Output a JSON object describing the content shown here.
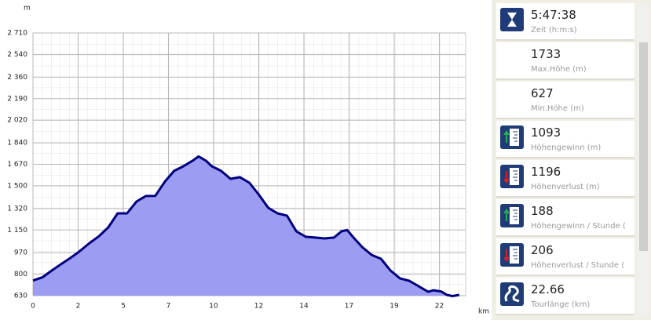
{
  "chart_data": {
    "type": "area",
    "y_label": "m",
    "x_label": "km",
    "x": [
      0,
      0.5,
      1,
      1.5,
      2,
      2.4,
      3,
      3.5,
      4,
      4.5,
      5,
      5.5,
      6,
      6.5,
      7,
      7.5,
      8,
      8.5,
      8.8,
      9.2,
      9.5,
      10,
      10.5,
      11,
      11.5,
      12,
      12.5,
      13,
      13.5,
      14,
      14.5,
      15,
      15.5,
      16,
      16.4,
      16.7,
      17,
      17.5,
      18,
      18.5,
      19,
      19.5,
      20,
      20.5,
      21,
      21.3,
      21.7,
      22,
      22.3,
      22.66
    ],
    "values": [
      750,
      775,
      829,
      880,
      930,
      972,
      1046,
      1100,
      1170,
      1282,
      1282,
      1375,
      1419,
      1420,
      1531,
      1618,
      1655,
      1700,
      1733,
      1698,
      1655,
      1618,
      1555,
      1568,
      1524,
      1431,
      1326,
      1282,
      1264,
      1139,
      1096,
      1090,
      1083,
      1090,
      1140,
      1150,
      1096,
      1015,
      953,
      922,
      829,
      767,
      748,
      705,
      661,
      673,
      663,
      636,
      627,
      636
    ],
    "color": "#9c9cf2",
    "line_color": "#000080",
    "xlim": [
      0,
      23
    ],
    "ylim": [
      630,
      2710
    ],
    "xticks": [
      0,
      {
        "value": 2.4,
        "label": "2"
      },
      {
        "value": 4.8,
        "label": "5"
      },
      {
        "value": 7.2,
        "label": "7"
      },
      {
        "value": 9.6,
        "label": "10"
      },
      12,
      {
        "value": 14.4,
        "label": "14"
      },
      {
        "value": 16.8,
        "label": "17"
      },
      {
        "value": 19.2,
        "label": "19"
      },
      {
        "value": 21.6,
        "label": "22"
      }
    ],
    "yticks": [
      630,
      800,
      970,
      {
        "value": 1150,
        "label": "1 150"
      },
      {
        "value": 1320,
        "label": "1 320"
      },
      {
        "value": 1500,
        "label": "1 500"
      },
      {
        "value": 1670,
        "label": "1 670"
      },
      {
        "value": 1840,
        "label": "1 840"
      },
      {
        "value": 2020,
        "label": "2 020"
      },
      {
        "value": 2190,
        "label": "2 190"
      },
      {
        "value": 2360,
        "label": "2 360"
      },
      {
        "value": 2540,
        "label": "2 540"
      },
      {
        "value": 2710,
        "label": "2 710"
      }
    ],
    "grid": true
  },
  "stats": [
    {
      "value": "5:47:38",
      "label": "Zeit (h:m:s)"
    },
    {
      "value": "1733",
      "label": "Max.Höhe (m)"
    },
    {
      "value": "627",
      "label": "Min.Höhe (m)"
    },
    {
      "value": "1093",
      "label": "Höhengewinn (m)"
    },
    {
      "value": "1196",
      "label": "Höhenverlust (m)"
    },
    {
      "value": "188",
      "label": "Höhengewinn / Stunde ("
    },
    {
      "value": "206",
      "label": "Höhenverlust / Stunde ("
    },
    {
      "value": "22.66",
      "label": "Tourlänge (km)"
    }
  ]
}
